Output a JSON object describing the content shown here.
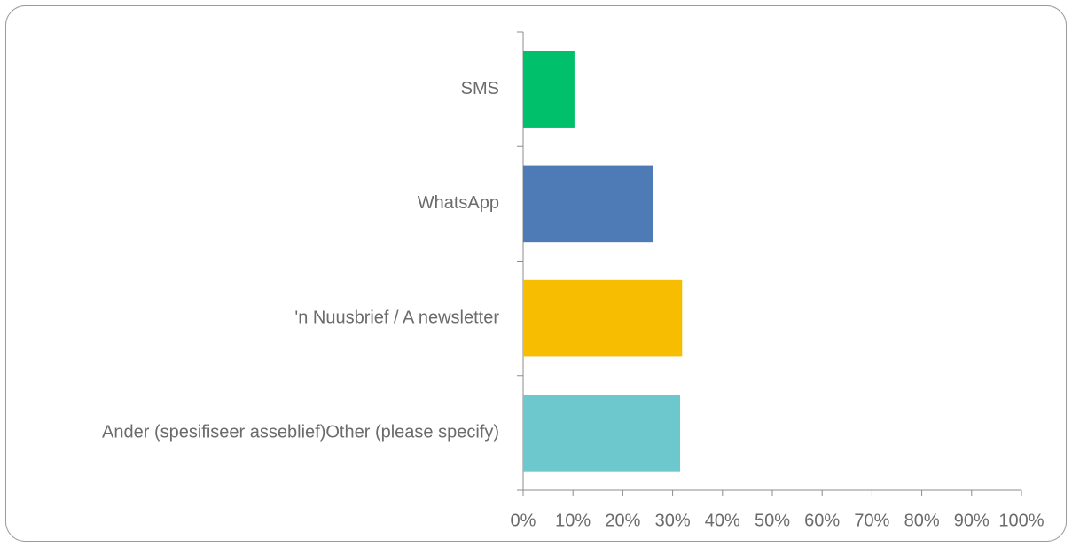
{
  "chart_data": {
    "type": "barh",
    "categories": [
      "SMS",
      "WhatsApp",
      "'n Nuusbrief / A newsletter",
      "Ander (spesifiseer asseblief)Other (please specify)"
    ],
    "values": [
      10.3,
      26.0,
      31.9,
      31.5
    ],
    "colors": [
      "#00c06b",
      "#4e7ab5",
      "#f7bd00",
      "#6cc8cc"
    ],
    "xlim": [
      0,
      100
    ],
    "xticks": [
      {
        "value": 0,
        "label": "0%"
      },
      {
        "value": 10,
        "label": "10%"
      },
      {
        "value": 20,
        "label": "20%"
      },
      {
        "value": 30,
        "label": "30%"
      },
      {
        "value": 40,
        "label": "40%"
      },
      {
        "value": 50,
        "label": "50%"
      },
      {
        "value": 60,
        "label": "60%"
      },
      {
        "value": 70,
        "label": "70%"
      },
      {
        "value": 80,
        "label": "80%"
      },
      {
        "value": 90,
        "label": "90%"
      },
      {
        "value": 100,
        "label": "100%"
      }
    ],
    "grid": false
  }
}
